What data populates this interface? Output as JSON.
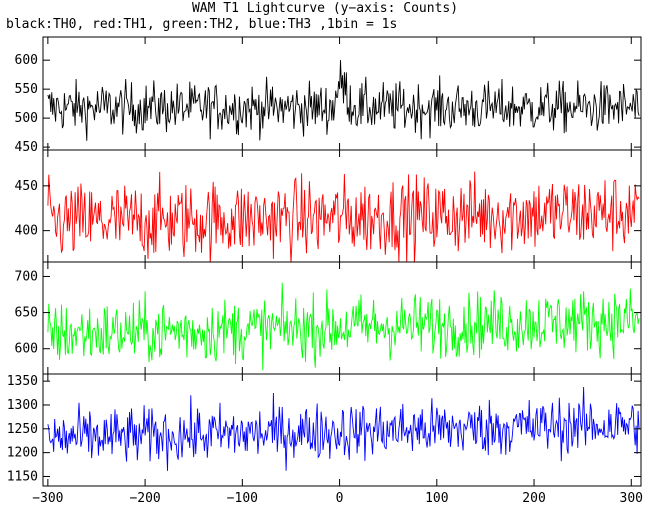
{
  "title": "WAM T1 Lightcurve (y−axis: Counts)",
  "subtitle": "black:TH0, red:TH1, green:TH2, blue:TH3 ,1bin = 1s",
  "chart_data": {
    "type": "line",
    "xlabel": "",
    "ylabel": "Counts",
    "xlim": [
      -305,
      310
    ],
    "grid": false,
    "x_ticks": [
      -300,
      -200,
      -100,
      0,
      100,
      200,
      300
    ],
    "panels": [
      {
        "color": "#000000",
        "ylim": [
          445,
          640
        ],
        "y_ticks": [
          450,
          500,
          550,
          600
        ],
        "mean": 518,
        "noise": 22,
        "trend": 0,
        "burst": 40
      },
      {
        "color": "#ff0000",
        "ylim": [
          365,
          490
        ],
        "y_ticks": [
          400,
          450
        ],
        "mean": 415,
        "noise": 22,
        "trend": 12,
        "burst": 0
      },
      {
        "color": "#00ff00",
        "ylim": [
          565,
          720
        ],
        "y_ticks": [
          600,
          650,
          700
        ],
        "mean": 630,
        "noise": 22,
        "trend": 20,
        "burst": 0
      },
      {
        "color": "#0000ff",
        "ylim": [
          1130,
          1365
        ],
        "y_ticks": [
          1150,
          1200,
          1250,
          1300,
          1350
        ],
        "mean": 1245,
        "noise": 30,
        "trend": 30,
        "burst": 0
      }
    ]
  }
}
